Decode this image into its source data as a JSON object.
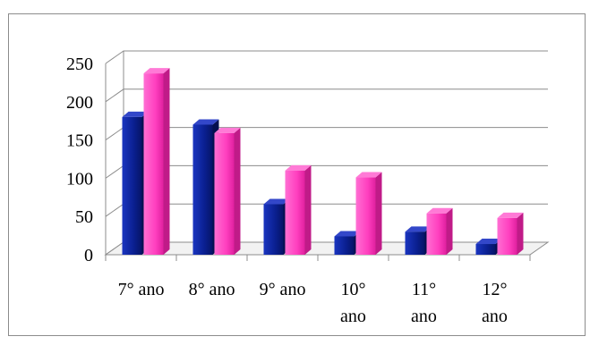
{
  "chart_data": {
    "type": "bar",
    "title": "",
    "xlabel": "",
    "ylabel": "",
    "categories": [
      [
        "7° ano"
      ],
      [
        "8° ano"
      ],
      [
        "9° ano"
      ],
      [
        "10°",
        "ano"
      ],
      [
        "11°",
        "ano"
      ],
      [
        "12°",
        "ano"
      ]
    ],
    "series": [
      {
        "values": [
          180,
          170,
          66,
          24,
          30,
          14
        ],
        "color": "#0a1f8f"
      },
      {
        "values": [
          237,
          159,
          110,
          101,
          54,
          48
        ],
        "color": "#ff3fbf"
      }
    ],
    "ylim": [
      0,
      250
    ],
    "yticks": [
      0,
      50,
      100,
      150,
      200,
      250
    ],
    "grid": true,
    "legend": "none",
    "style": "3d-clustered-column"
  }
}
